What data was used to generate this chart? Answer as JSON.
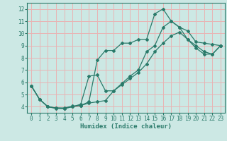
{
  "xlabel": "Humidex (Indice chaleur)",
  "bg_color": "#cce8e4",
  "grid_color": "#e8b4b4",
  "line_color": "#2a7a6a",
  "xlim": [
    -0.5,
    23.5
  ],
  "ylim": [
    3.5,
    12.5
  ],
  "xticks": [
    0,
    1,
    2,
    3,
    4,
    5,
    6,
    7,
    8,
    9,
    10,
    11,
    12,
    13,
    14,
    15,
    16,
    17,
    18,
    19,
    20,
    21,
    22,
    23
  ],
  "yticks": [
    4,
    5,
    6,
    7,
    8,
    9,
    10,
    11,
    12
  ],
  "line1_x": [
    0,
    1,
    2,
    3,
    4,
    5,
    6,
    7,
    8,
    9,
    10,
    11,
    12,
    13,
    14,
    15,
    16,
    17,
    18,
    19,
    20,
    21,
    22,
    23
  ],
  "line1_y": [
    5.7,
    4.6,
    4.0,
    3.9,
    3.9,
    4.05,
    4.1,
    4.4,
    7.8,
    8.6,
    8.6,
    9.2,
    9.2,
    9.5,
    9.5,
    11.6,
    12.0,
    11.0,
    10.5,
    10.2,
    9.3,
    9.2,
    9.1,
    9.0
  ],
  "line2_x": [
    0,
    1,
    2,
    3,
    4,
    5,
    6,
    7,
    8,
    9,
    10,
    11,
    12,
    13,
    14,
    15,
    16,
    17,
    18,
    19,
    20,
    21,
    22,
    23
  ],
  "line2_y": [
    5.7,
    4.6,
    4.0,
    3.9,
    3.85,
    4.0,
    4.2,
    6.5,
    6.6,
    5.3,
    5.3,
    5.9,
    6.5,
    7.0,
    8.5,
    9.0,
    10.5,
    11.0,
    10.5,
    9.5,
    9.0,
    8.5,
    8.3,
    9.0
  ],
  "line3_x": [
    0,
    1,
    2,
    3,
    4,
    5,
    6,
    7,
    8,
    9,
    10,
    11,
    12,
    13,
    14,
    15,
    16,
    17,
    18,
    19,
    20,
    21,
    22,
    23
  ],
  "line3_y": [
    5.7,
    4.6,
    4.0,
    3.85,
    3.85,
    4.0,
    4.1,
    4.3,
    4.4,
    4.5,
    5.3,
    5.8,
    6.3,
    6.8,
    7.5,
    8.5,
    9.2,
    9.8,
    10.1,
    9.5,
    8.8,
    8.3,
    8.3,
    9.0
  ]
}
